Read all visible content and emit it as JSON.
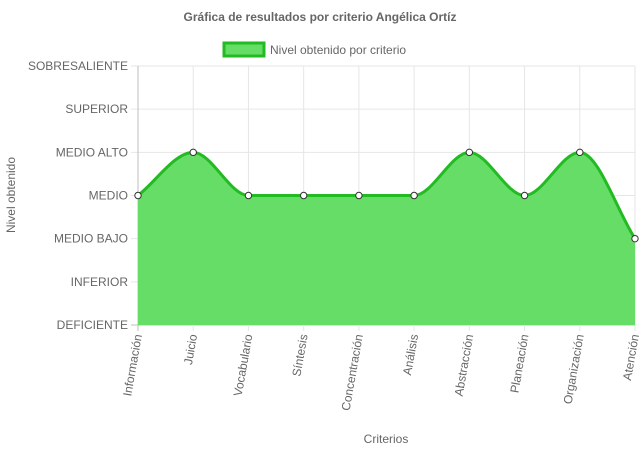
{
  "chart_data": {
    "type": "area",
    "title": "Gráfica de resultados por criterio Angélica Ortíz",
    "xlabel": "Criterios",
    "ylabel": "Nivel obtenido",
    "categories": [
      "Información",
      "Juicio",
      "Vocabulario",
      "Síntesis",
      "Concentración",
      "Análisis",
      "Abstracción",
      "Planeación",
      "Organización",
      "Atención"
    ],
    "y_levels": [
      "DEFICIENTE",
      "INFERIOR",
      "MEDIO BAJO",
      "MEDIO",
      "MEDIO ALTO",
      "SUPERIOR",
      "SOBRESALIENTE"
    ],
    "ylim": [
      1,
      7
    ],
    "series": [
      {
        "name": "Nivel obtenido por criterio",
        "values": [
          4,
          5,
          4,
          4,
          4,
          4,
          5,
          4,
          5,
          3
        ]
      }
    ],
    "grid": true,
    "legend_position": "top",
    "colors": {
      "fill": "#66dd66",
      "stroke": "#22bb22",
      "grid": "#e6e6e6",
      "axis": "#bfbfbf",
      "text": "#666666",
      "point_fill": "#ffffff",
      "point_stroke": "#333333"
    }
  }
}
